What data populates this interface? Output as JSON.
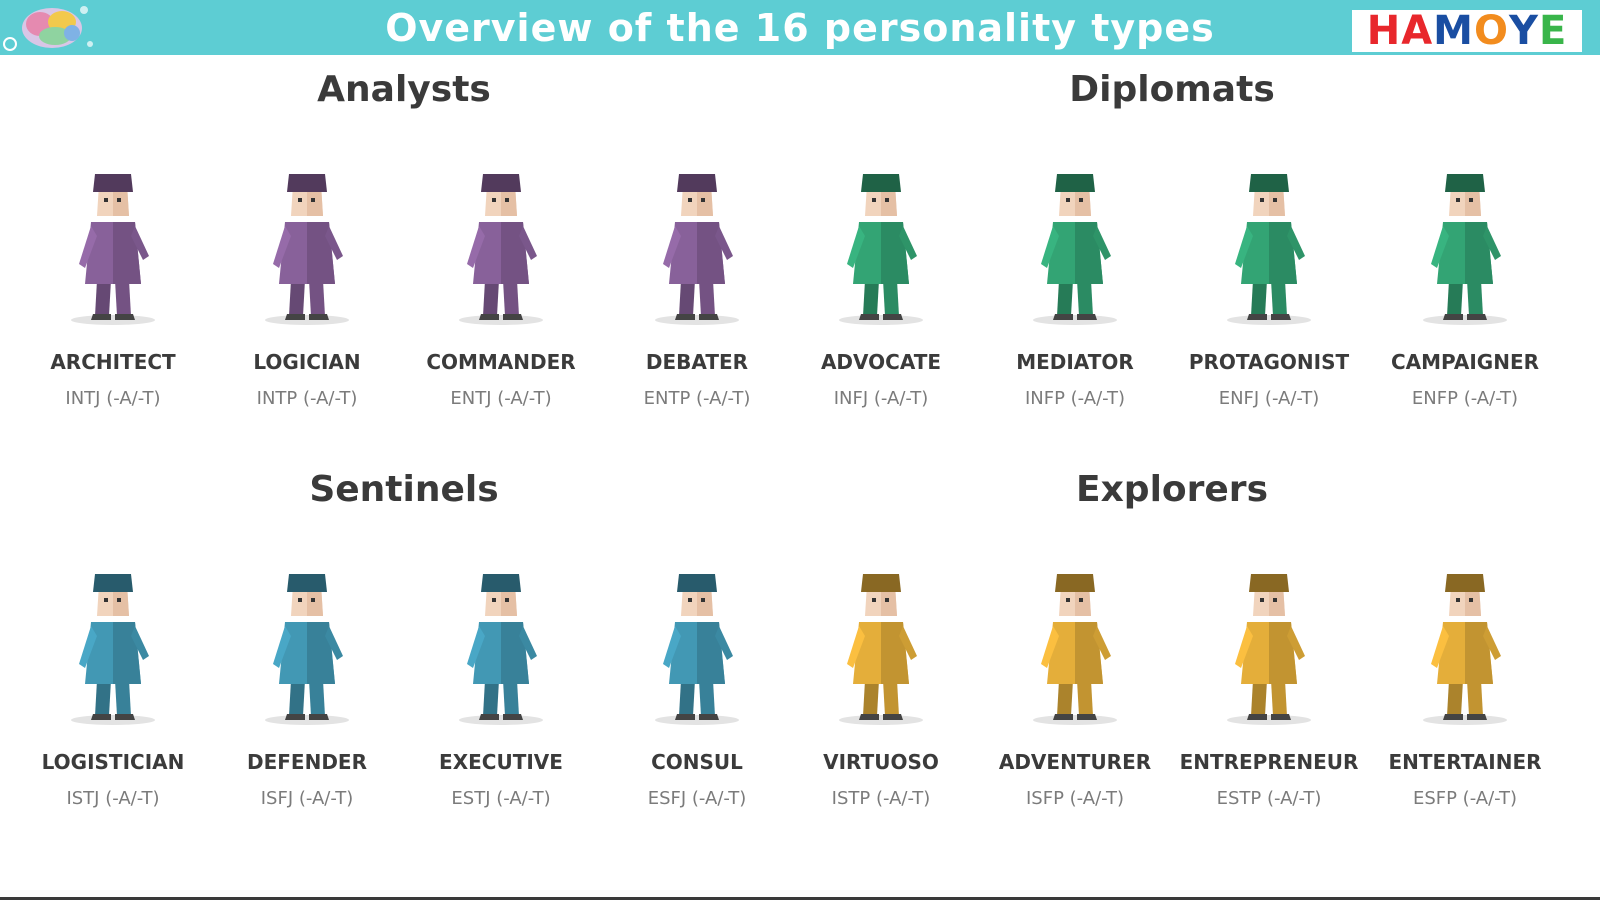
{
  "header": {
    "title": "Overview of the 16 personality types",
    "logo_letters": [
      {
        "text": "H",
        "color": "#e8272c"
      },
      {
        "text": "A",
        "color": "#e8272c"
      },
      {
        "text": "M",
        "color": "#1a4ea2"
      },
      {
        "text": "O",
        "color": "#f28c1e"
      },
      {
        "text": "Y",
        "color": "#1a4ea2"
      },
      {
        "text": "E",
        "color": "#39b54a"
      }
    ]
  },
  "groups": [
    {
      "label": "Analysts",
      "color": "#88619a"
    },
    {
      "label": "Diplomats",
      "color": "#33a474"
    },
    {
      "label": "Sentinels",
      "color": "#4298b4"
    },
    {
      "label": "Explorers",
      "color": "#e4ae3a"
    }
  ],
  "types": [
    {
      "name": "ARCHITECT",
      "code": "INTJ (-A/-T)",
      "group": "analysts",
      "icon": "architect-figure-icon"
    },
    {
      "name": "LOGICIAN",
      "code": "INTP (-A/-T)",
      "group": "analysts",
      "icon": "logician-figure-icon"
    },
    {
      "name": "COMMANDER",
      "code": "ENTJ (-A/-T)",
      "group": "analysts",
      "icon": "commander-figure-icon"
    },
    {
      "name": "DEBATER",
      "code": "ENTP (-A/-T)",
      "group": "analysts",
      "icon": "debater-figure-icon"
    },
    {
      "name": "ADVOCATE",
      "code": "INFJ (-A/-T)",
      "group": "diplomats",
      "icon": "advocate-figure-icon"
    },
    {
      "name": "MEDIATOR",
      "code": "INFP (-A/-T)",
      "group": "diplomats",
      "icon": "mediator-figure-icon"
    },
    {
      "name": "PROTAGONIST",
      "code": "ENFJ (-A/-T)",
      "group": "diplomats",
      "icon": "protagonist-figure-icon"
    },
    {
      "name": "CAMPAIGNER",
      "code": "ENFP (-A/-T)",
      "group": "diplomats",
      "icon": "campaigner-figure-icon"
    },
    {
      "name": "LOGISTICIAN",
      "code": "ISTJ (-A/-T)",
      "group": "sentinels",
      "icon": "logistician-figure-icon"
    },
    {
      "name": "DEFENDER",
      "code": "ISFJ (-A/-T)",
      "group": "sentinels",
      "icon": "defender-figure-icon"
    },
    {
      "name": "EXECUTIVE",
      "code": "ESTJ (-A/-T)",
      "group": "sentinels",
      "icon": "executive-figure-icon"
    },
    {
      "name": "CONSUL",
      "code": "ESFJ (-A/-T)",
      "group": "sentinels",
      "icon": "consul-figure-icon"
    },
    {
      "name": "VIRTUOSO",
      "code": "ISTP (-A/-T)",
      "group": "explorers",
      "icon": "virtuoso-figure-icon"
    },
    {
      "name": "ADVENTURER",
      "code": "ISFP (-A/-T)",
      "group": "explorers",
      "icon": "adventurer-figure-icon"
    },
    {
      "name": "ENTREPRENEUR",
      "code": "ESTP (-A/-T)",
      "group": "explorers",
      "icon": "entrepreneur-figure-icon"
    },
    {
      "name": "ENTERTAINER",
      "code": "ESFP (-A/-T)",
      "group": "explorers",
      "icon": "entertainer-figure-icon"
    }
  ]
}
